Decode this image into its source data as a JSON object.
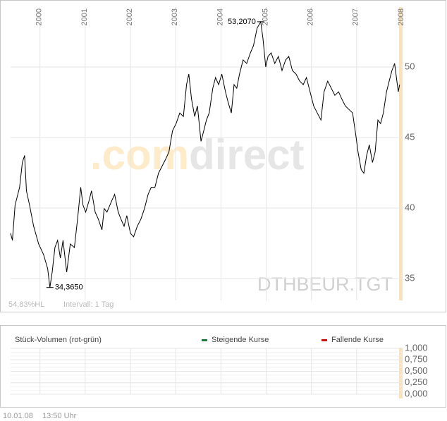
{
  "chart_data": [
    {
      "type": "line",
      "color": "#000000",
      "grid": true,
      "watermark": {
        "prefix": ".com",
        "suffix": "direct",
        "symbol": "DTHBEUR.TGT"
      },
      "info": [
        "54,83%HL",
        "Intervall: 1 Tag"
      ],
      "xlim": [
        1999.35,
        2008.0
      ],
      "xticks": [
        2000,
        2001,
        2002,
        2003,
        2004,
        2005,
        2006,
        2007,
        2008
      ],
      "ylim": [
        33.45,
        54.25
      ],
      "yticks": [
        35,
        40,
        45,
        50
      ],
      "annotations": [
        {
          "x": 2004.88,
          "value": 53.207,
          "label": "53,2070"
        },
        {
          "x": 2000.22,
          "value": 34.365,
          "label": "34,3650"
        }
      ],
      "x": [
        1999.35,
        1999.39,
        1999.45,
        1999.55,
        1999.61,
        1999.66,
        1999.7,
        1999.77,
        1999.86,
        1999.97,
        2000.08,
        2000.17,
        2000.22,
        2000.27,
        2000.33,
        2000.39,
        2000.45,
        2000.51,
        2000.59,
        2000.67,
        2000.76,
        2000.83,
        2000.9,
        2000.95,
        2001.01,
        2001.08,
        2001.14,
        2001.22,
        2001.29,
        2001.37,
        2001.42,
        2001.48,
        2001.58,
        2001.65,
        2001.73,
        2001.79,
        2001.86,
        2001.92,
        2002.0,
        2002.07,
        2002.15,
        2002.23,
        2002.31,
        2002.39,
        2002.46,
        2002.54,
        2002.62,
        2002.7,
        2002.78,
        2002.85,
        2002.93,
        2003.01,
        2003.09,
        2003.17,
        2003.24,
        2003.29,
        2003.35,
        2003.42,
        2003.48,
        2003.56,
        2003.62,
        2003.68,
        2003.74,
        2003.82,
        2003.88,
        2003.95,
        2004.02,
        2004.1,
        2004.16,
        2004.23,
        2004.29,
        2004.35,
        2004.41,
        2004.49,
        2004.57,
        2004.65,
        2004.72,
        2004.8,
        2004.88,
        2004.93,
        2004.99,
        2005.04,
        2005.11,
        2005.19,
        2005.27,
        2005.35,
        2005.43,
        2005.5,
        2005.58,
        2005.66,
        2005.74,
        2005.82,
        2005.89,
        2005.97,
        2006.05,
        2006.13,
        2006.21,
        2006.28,
        2006.36,
        2006.44,
        2006.52,
        2006.6,
        2006.67,
        2006.75,
        2006.83,
        2006.91,
        2006.99,
        2007.03,
        2007.1,
        2007.16,
        2007.22,
        2007.28,
        2007.35,
        2007.41,
        2007.47,
        2007.53,
        2007.59,
        2007.66,
        2007.72,
        2007.78,
        2007.84,
        2007.89,
        2007.92,
        2007.95
      ],
      "values": [
        38.21,
        37.71,
        40.21,
        41.47,
        43.23,
        43.73,
        41.22,
        40.21,
        38.71,
        37.45,
        36.7,
        35.7,
        34.365,
        35.45,
        37.2,
        37.71,
        36.45,
        37.71,
        35.45,
        37.45,
        37.2,
        39.21,
        41.47,
        40.21,
        39.71,
        40.47,
        41.22,
        39.71,
        39.21,
        38.46,
        39.96,
        39.71,
        40.47,
        40.97,
        39.71,
        39.21,
        38.71,
        39.46,
        38.21,
        37.96,
        38.71,
        39.21,
        39.96,
        40.97,
        41.47,
        41.47,
        42.47,
        42.97,
        43.48,
        43.98,
        45.48,
        45.99,
        46.74,
        46.49,
        48.75,
        49.5,
        47.74,
        46.49,
        47.24,
        44.73,
        45.48,
        46.24,
        46.74,
        48.49,
        49.25,
        48.75,
        49.5,
        48.24,
        47.49,
        46.74,
        48.75,
        48.49,
        49.5,
        50.5,
        50.25,
        51.0,
        51.51,
        52.76,
        53.207,
        52.01,
        50.0,
        50.75,
        51.0,
        50.25,
        50.75,
        49.75,
        50.5,
        50.75,
        49.75,
        49.5,
        49.0,
        48.75,
        49.25,
        48.24,
        47.24,
        46.74,
        46.24,
        48.24,
        49.0,
        48.49,
        47.99,
        48.24,
        47.74,
        47.24,
        46.99,
        46.74,
        44.98,
        43.98,
        42.72,
        42.47,
        43.73,
        44.48,
        43.23,
        43.98,
        46.24,
        45.99,
        46.74,
        48.24,
        49.0,
        49.75,
        50.25,
        49.0,
        48.24,
        48.75
      ]
    },
    {
      "type": "volume",
      "title": "Stück-Volumen (rot-grün)",
      "grid": true,
      "legend": [
        {
          "name": "Steigende Kurse",
          "color": "#1e7a3c"
        },
        {
          "name": "Fallende Kurse",
          "color": "#cc1111"
        }
      ],
      "ylim": [
        0,
        1
      ],
      "yticks": [
        {
          "value": 1,
          "label": "1,000"
        },
        {
          "value": 0.75,
          "label": "0,750"
        },
        {
          "value": 0.5,
          "label": "0,500"
        },
        {
          "value": 0.25,
          "label": "0,250"
        },
        {
          "value": 0,
          "label": "0,000"
        }
      ]
    }
  ],
  "footer": {
    "date": "10.01.08",
    "time": "13:50 Uhr"
  }
}
